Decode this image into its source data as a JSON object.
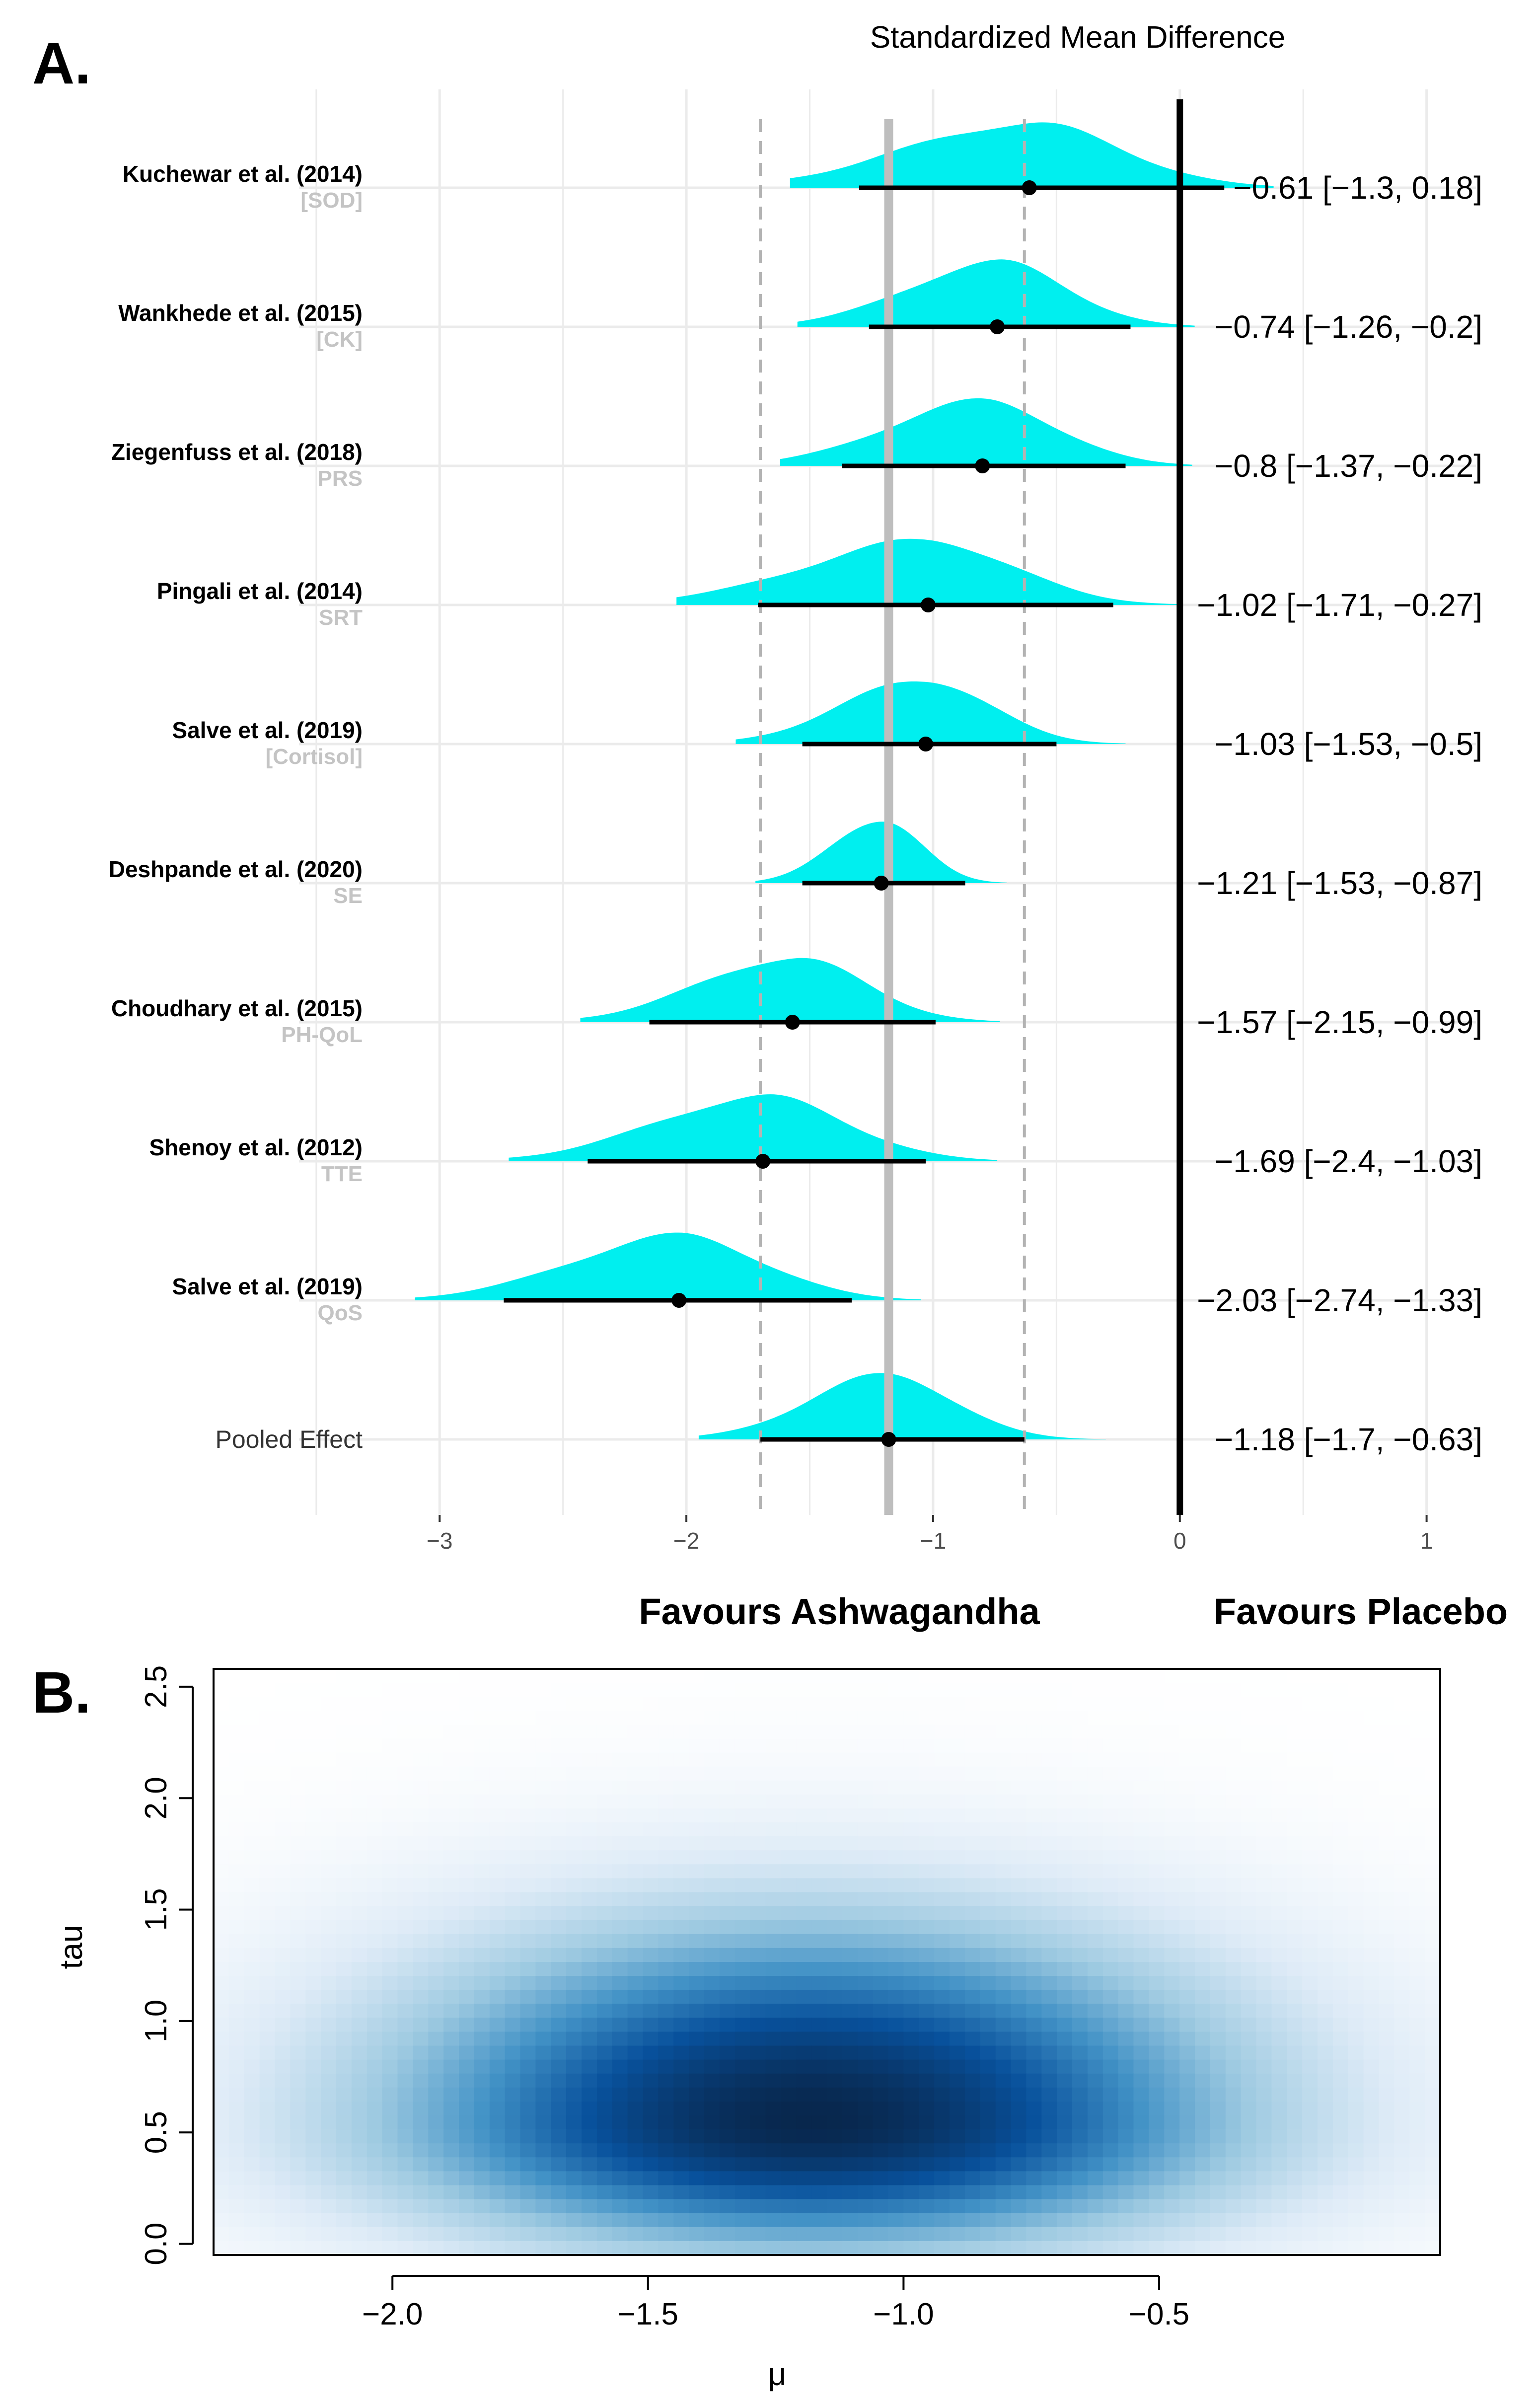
{
  "panel_a": {
    "label": "A.",
    "title": "Standardized Mean Difference",
    "favours_left": "Favours Ashwagandha",
    "favours_right": "Favours Placebo",
    "colors": {
      "density": "#00efef",
      "interval": "#000000",
      "pooled_line": "#bebebe",
      "ci_line": "#b3b3b3",
      "grid": "#ebebeb"
    }
  },
  "panel_b": {
    "label": "B.",
    "colors": {
      "low": "#ffffff",
      "high": "#08274d"
    }
  },
  "chart_data": [
    {
      "type": "forest",
      "title": "Standardized Mean Difference",
      "xlabel": "",
      "xlim": [
        -3.55,
        1.2
      ],
      "xticks": [
        -3,
        -2,
        -1,
        0,
        1
      ],
      "xtick_labels": [
        "−3",
        "−2",
        "−1",
        "0",
        "1"
      ],
      "pooled_mean": -1.18,
      "pooled_ci": [
        -1.7,
        -0.63
      ],
      "reference_line": 0,
      "studies": [
        {
          "name": "Kuchewar et al. (2014)",
          "outcome": "[SOD]",
          "mean": -0.61,
          "lower": -1.3,
          "upper": 0.18,
          "label": "−0.61 [−1.3, 0.18]",
          "sd": 0.4,
          "skew": 0.25,
          "tail": [
            -1.58,
            0.38
          ]
        },
        {
          "name": "Wankhede et al. (2015)",
          "outcome": "[CK]",
          "mean": -0.74,
          "lower": -1.26,
          "upper": -0.2,
          "label": "−0.74 [−1.26, −0.2]",
          "sd": 0.3,
          "skew": 0.2,
          "tail": [
            -1.55,
            0.06
          ]
        },
        {
          "name": "Ziegenfuss et al. (2018)",
          "outcome": "PRS",
          "mean": -0.8,
          "lower": -1.37,
          "upper": -0.22,
          "label": "−0.8 [−1.37, −0.22]",
          "sd": 0.32,
          "skew": 0.2,
          "tail": [
            -1.62,
            0.05
          ]
        },
        {
          "name": "Pingali et al. (2014)",
          "outcome": "SRT",
          "mean": -1.02,
          "lower": -1.71,
          "upper": -0.27,
          "label": "−1.02 [−1.71, −0.27]",
          "sd": 0.38,
          "skew": 0.3,
          "tail": [
            -2.04,
            0.0
          ]
        },
        {
          "name": "Salve et al. (2019)",
          "outcome": "[Cortisol]",
          "mean": -1.03,
          "lower": -1.53,
          "upper": -0.5,
          "label": "−1.03 [−1.53, −0.5]",
          "sd": 0.28,
          "skew": 0.2,
          "tail": [
            -1.8,
            -0.22
          ]
        },
        {
          "name": "Deshpande et al. (2020)",
          "outcome": "SE",
          "mean": -1.21,
          "lower": -1.53,
          "upper": -0.87,
          "label": "−1.21 [−1.53, −0.87]",
          "sd": 0.17,
          "skew": 0.15,
          "tail": [
            -1.72,
            -0.7
          ]
        },
        {
          "name": "Choudhary et al. (2015)",
          "outcome": "PH-QoL",
          "mean": -1.57,
          "lower": -2.15,
          "upper": -0.99,
          "label": "−1.57 [−2.15, −0.99]",
          "sd": 0.31,
          "skew": 0.2,
          "tail": [
            -2.43,
            -0.73
          ]
        },
        {
          "name": "Shenoy et al. (2012)",
          "outcome": "TTE",
          "mean": -1.69,
          "lower": -2.4,
          "upper": -1.03,
          "label": "−1.69 [−2.4, −1.03]",
          "sd": 0.36,
          "skew": 0.2,
          "tail": [
            -2.72,
            -0.74
          ]
        },
        {
          "name": "Salve et al. (2019)",
          "outcome": "QoS",
          "mean": -2.03,
          "lower": -2.74,
          "upper": -1.33,
          "label": "−2.03 [−2.74, −1.33]",
          "sd": 0.36,
          "skew": 0.2,
          "tail": [
            -3.1,
            -1.05
          ]
        },
        {
          "name": "Pooled Effect",
          "outcome": "",
          "mean": -1.18,
          "lower": -1.7,
          "upper": -0.63,
          "label": "−1.18 [−1.7, −0.63]",
          "sd": 0.28,
          "skew": 0.15,
          "tail": [
            -1.95,
            -0.3
          ]
        }
      ]
    },
    {
      "type": "heatmap",
      "title": "",
      "xlabel": "μ",
      "ylabel": "tau",
      "xlim": [
        -2.35,
        0.05
      ],
      "ylim": [
        -0.05,
        2.58
      ],
      "xticks": [
        -2.0,
        -1.5,
        -1.0,
        -0.5
      ],
      "xtick_labels": [
        "−2.0",
        "−1.5",
        "−1.0",
        "−0.5"
      ],
      "yticks": [
        0.0,
        0.5,
        1.0,
        1.5,
        2.0,
        2.5
      ],
      "ytick_labels": [
        "0.0",
        "0.5",
        "1.0",
        "1.5",
        "2.0",
        "2.5"
      ],
      "density_mode": {
        "mu": -1.18,
        "tau": 0.55
      }
    }
  ]
}
